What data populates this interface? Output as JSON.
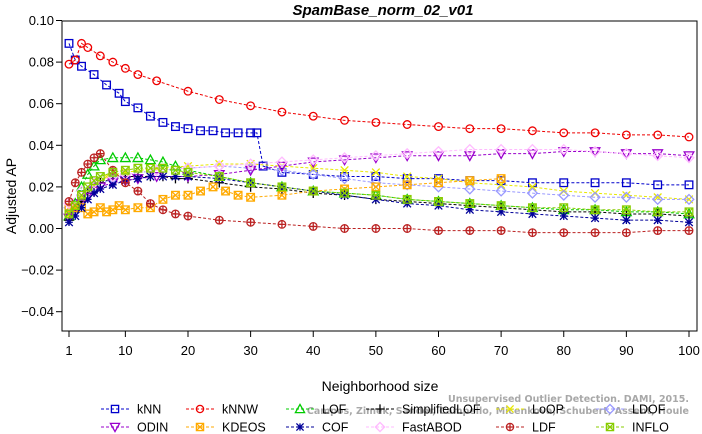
{
  "chart_data": {
    "type": "line",
    "title": "SpamBase_norm_02_v01",
    "xlabel": "Neighborhood size",
    "ylabel": "Adjusted AP",
    "xlim": [
      1,
      100
    ],
    "ylim": [
      -0.05,
      0.1
    ],
    "xticks": [
      "1",
      "10",
      "20",
      "30",
      "40",
      "50",
      "60",
      "70",
      "80",
      "90",
      "100"
    ],
    "yticks": [
      "−0.04",
      "−0.02",
      "0.00",
      "0.02",
      "0.04",
      "0.06",
      "0.08",
      "0.10"
    ],
    "watermark": [
      "Campos, Zimek, Sander, Campello, Micenkova, Schubert, Assent, Houle",
      "Unsupervised Outlier Detection. DAMI, 2015."
    ],
    "series": [
      {
        "name": "kNN",
        "color": "#0000cc",
        "marker": "square",
        "dashed": true,
        "x": [
          1,
          2,
          3,
          5,
          7,
          9,
          10,
          12,
          14,
          16,
          18,
          20,
          22,
          24,
          26,
          28,
          30,
          31,
          32,
          35,
          40,
          45,
          50,
          55,
          60,
          65,
          70,
          75,
          80,
          85,
          90,
          95,
          100
        ],
        "y": [
          0.089,
          0.081,
          0.078,
          0.074,
          0.069,
          0.065,
          0.061,
          0.058,
          0.054,
          0.051,
          0.049,
          0.048,
          0.047,
          0.047,
          0.046,
          0.046,
          0.046,
          0.046,
          0.03,
          0.027,
          0.026,
          0.025,
          0.025,
          0.024,
          0.024,
          0.023,
          0.023,
          0.022,
          0.022,
          0.022,
          0.022,
          0.021,
          0.021
        ]
      },
      {
        "name": "kNNW",
        "color": "#ee0000",
        "marker": "circle",
        "dashed": true,
        "x": [
          1,
          2,
          3,
          4,
          6,
          8,
          10,
          12,
          15,
          20,
          25,
          30,
          35,
          40,
          45,
          50,
          55,
          60,
          65,
          70,
          75,
          80,
          85,
          90,
          95,
          100
        ],
        "y": [
          0.079,
          0.081,
          0.089,
          0.087,
          0.083,
          0.08,
          0.077,
          0.074,
          0.071,
          0.066,
          0.062,
          0.059,
          0.056,
          0.054,
          0.052,
          0.051,
          0.05,
          0.049,
          0.048,
          0.048,
          0.047,
          0.046,
          0.046,
          0.045,
          0.045,
          0.044
        ]
      },
      {
        "name": "LOF",
        "color": "#00cc00",
        "marker": "triangle",
        "dashed": true,
        "x": [
          1,
          2,
          3,
          4,
          5,
          6,
          8,
          10,
          12,
          14,
          16,
          18,
          20,
          25,
          30,
          35,
          40,
          45,
          50,
          55,
          60,
          65,
          70,
          75,
          80,
          85,
          90,
          95,
          100
        ],
        "y": [
          0.006,
          0.012,
          0.02,
          0.026,
          0.03,
          0.033,
          0.034,
          0.034,
          0.034,
          0.033,
          0.032,
          0.03,
          0.028,
          0.025,
          0.022,
          0.02,
          0.018,
          0.017,
          0.016,
          0.014,
          0.013,
          0.012,
          0.011,
          0.01,
          0.009,
          0.009,
          0.008,
          0.008,
          0.007
        ]
      },
      {
        "name": "SimplifiedLOF",
        "color": "#000000",
        "marker": "plus",
        "dashed": true,
        "x": [
          1,
          2,
          3,
          4,
          5,
          6,
          8,
          10,
          12,
          14,
          16,
          18,
          20,
          25,
          30,
          35,
          40,
          45,
          50,
          55,
          60,
          65,
          70,
          75,
          80,
          85,
          90,
          95,
          100
        ],
        "y": [
          0.004,
          0.008,
          0.013,
          0.017,
          0.02,
          0.022,
          0.024,
          0.025,
          0.025,
          0.025,
          0.025,
          0.024,
          0.024,
          0.022,
          0.02,
          0.019,
          0.017,
          0.016,
          0.014,
          0.013,
          0.012,
          0.011,
          0.01,
          0.009,
          0.008,
          0.008,
          0.007,
          0.007,
          0.006
        ]
      },
      {
        "name": "LoOP",
        "color": "#e8e800",
        "marker": "cross",
        "dashed": true,
        "x": [
          1,
          2,
          3,
          5,
          7,
          10,
          15,
          20,
          25,
          30,
          35,
          40,
          45,
          50,
          55,
          60,
          65,
          70,
          75,
          80,
          85,
          90,
          95,
          100
        ],
        "y": [
          0.006,
          0.01,
          0.015,
          0.021,
          0.025,
          0.027,
          0.029,
          0.03,
          0.031,
          0.031,
          0.03,
          0.029,
          0.028,
          0.027,
          0.025,
          0.024,
          0.022,
          0.021,
          0.02,
          0.018,
          0.017,
          0.016,
          0.015,
          0.014
        ]
      },
      {
        "name": "LDOF",
        "color": "#9999ff",
        "marker": "diamond",
        "dashed": true,
        "x": [
          1,
          3,
          5,
          8,
          10,
          15,
          20,
          25,
          30,
          35,
          40,
          45,
          50,
          55,
          60,
          65,
          70,
          75,
          80,
          85,
          90,
          95,
          100
        ],
        "y": [
          0.01,
          0.016,
          0.02,
          0.024,
          0.026,
          0.028,
          0.029,
          0.03,
          0.029,
          0.028,
          0.026,
          0.024,
          0.022,
          0.021,
          0.02,
          0.019,
          0.018,
          0.017,
          0.016,
          0.015,
          0.015,
          0.014,
          0.014
        ]
      },
      {
        "name": "ODIN",
        "color": "#9900cc",
        "marker": "triangle-down",
        "dashed": true,
        "x": [
          1,
          2,
          3,
          4,
          5,
          6,
          8,
          10,
          12,
          15,
          20,
          25,
          30,
          35,
          40,
          45,
          50,
          55,
          60,
          65,
          70,
          75,
          80,
          85,
          90,
          95,
          100
        ],
        "y": [
          0.005,
          0.01,
          0.012,
          0.015,
          0.018,
          0.02,
          0.022,
          0.023,
          0.024,
          0.025,
          0.025,
          0.026,
          0.028,
          0.03,
          0.032,
          0.033,
          0.034,
          0.035,
          0.035,
          0.035,
          0.036,
          0.036,
          0.037,
          0.037,
          0.036,
          0.036,
          0.035
        ]
      },
      {
        "name": "KDEOS",
        "color": "#ffaa00",
        "marker": "square-x",
        "dashed": true,
        "x": [
          1,
          2,
          3,
          4,
          5,
          6,
          7,
          8,
          9,
          10,
          12,
          14,
          16,
          18,
          20,
          22,
          24,
          26,
          28,
          30,
          35,
          40,
          45,
          50,
          55,
          60,
          65,
          70
        ],
        "y": [
          0.01,
          0.01,
          0.01,
          0.007,
          0.008,
          0.01,
          0.008,
          0.009,
          0.011,
          0.009,
          0.01,
          0.01,
          0.014,
          0.016,
          0.016,
          0.018,
          0.02,
          0.018,
          0.016,
          0.015,
          0.016,
          0.018,
          0.019,
          0.02,
          0.021,
          0.022,
          0.023,
          0.024
        ]
      },
      {
        "name": "COF",
        "color": "#000099",
        "marker": "star",
        "dashed": true,
        "x": [
          1,
          2,
          3,
          4,
          5,
          6,
          8,
          10,
          12,
          14,
          16,
          18,
          20,
          25,
          30,
          35,
          40,
          45,
          50,
          55,
          60,
          65,
          70,
          75,
          80,
          85,
          90,
          95,
          100
        ],
        "y": [
          0.003,
          0.006,
          0.01,
          0.014,
          0.017,
          0.019,
          0.021,
          0.023,
          0.024,
          0.025,
          0.025,
          0.025,
          0.025,
          0.024,
          0.022,
          0.02,
          0.018,
          0.016,
          0.014,
          0.012,
          0.011,
          0.009,
          0.008,
          0.007,
          0.006,
          0.005,
          0.004,
          0.004,
          0.003
        ]
      },
      {
        "name": "FastABOD",
        "color": "#ffbbff",
        "marker": "diamond",
        "dashed": true,
        "x": [
          1,
          3,
          5,
          8,
          10,
          15,
          20,
          25,
          30,
          35,
          40,
          45,
          50,
          55,
          60,
          65,
          70,
          75,
          80,
          85,
          90,
          95,
          100
        ],
        "y": [
          0.012,
          0.018,
          0.022,
          0.025,
          0.026,
          0.028,
          0.029,
          0.03,
          0.031,
          0.032,
          0.033,
          0.034,
          0.035,
          0.036,
          0.037,
          0.038,
          0.038,
          0.038,
          0.038,
          0.037,
          0.036,
          0.035,
          0.034
        ]
      },
      {
        "name": "LDF",
        "color": "#bb2222",
        "marker": "circle-plus",
        "dashed": true,
        "x": [
          1,
          2,
          3,
          4,
          5,
          6,
          8,
          10,
          12,
          14,
          16,
          18,
          20,
          25,
          30,
          35,
          40,
          45,
          50,
          55,
          60,
          65,
          70,
          75,
          80,
          85,
          90,
          95,
          100
        ],
        "y": [
          0.013,
          0.022,
          0.027,
          0.031,
          0.034,
          0.036,
          0.028,
          0.022,
          0.018,
          0.012,
          0.009,
          0.007,
          0.006,
          0.004,
          0.003,
          0.002,
          0.001,
          0.0,
          0.0,
          0.0,
          -0.001,
          -0.001,
          -0.001,
          -0.002,
          -0.002,
          -0.002,
          -0.002,
          -0.001,
          -0.001
        ]
      },
      {
        "name": "INFLO",
        "color": "#88cc00",
        "marker": "square-x",
        "dashed": true,
        "x": [
          1,
          2,
          3,
          4,
          5,
          6,
          8,
          10,
          12,
          14,
          16,
          18,
          20,
          25,
          30,
          35,
          40,
          45,
          50,
          55,
          60,
          65,
          70,
          75,
          80,
          85,
          90,
          95,
          100
        ],
        "y": [
          0.007,
          0.011,
          0.016,
          0.02,
          0.023,
          0.025,
          0.027,
          0.028,
          0.029,
          0.029,
          0.029,
          0.028,
          0.027,
          0.025,
          0.022,
          0.02,
          0.018,
          0.017,
          0.016,
          0.014,
          0.013,
          0.012,
          0.011,
          0.01,
          0.01,
          0.009,
          0.009,
          0.008,
          0.008
        ]
      }
    ],
    "legend": {
      "position": "bottom",
      "columns": 6
    }
  }
}
